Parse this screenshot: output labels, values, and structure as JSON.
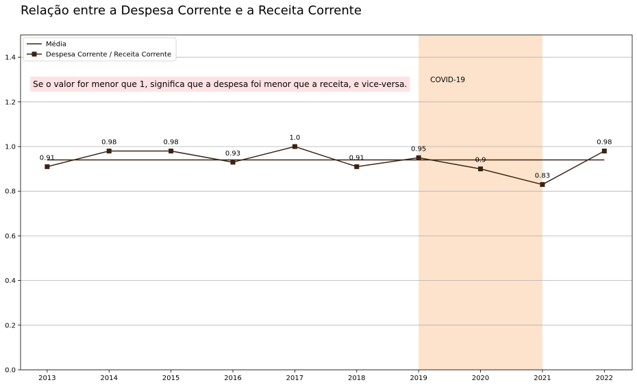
{
  "chart_data": {
    "type": "line",
    "title": "Relação entre a Despesa Corrente e a Receita Corrente",
    "xlabel": "",
    "ylabel": "",
    "x": [
      2013,
      2014,
      2015,
      2016,
      2017,
      2018,
      2019,
      2020,
      2021,
      2022
    ],
    "ylim": [
      0,
      1.5
    ],
    "yticks": [
      "0.0",
      "0.2",
      "0.4",
      "0.6",
      "0.8",
      "1.0",
      "1.2",
      "1.4"
    ],
    "grid": "horizontal",
    "legend_position": "top-left",
    "series": [
      {
        "name": "Média",
        "marker": "none",
        "color": "#3b2314",
        "values": [
          0.94,
          0.94,
          0.94,
          0.94,
          0.94,
          0.94,
          0.94,
          0.94,
          0.94,
          0.94
        ]
      },
      {
        "name": "Despesa Corrente / Receita Corrente",
        "marker": "square",
        "color": "#3b2314",
        "values": [
          0.91,
          0.98,
          0.98,
          0.93,
          1.0,
          0.91,
          0.95,
          0.9,
          0.83,
          0.98
        ],
        "labels": [
          "0.91",
          "0.98",
          "0.98",
          "0.93",
          "1.0",
          "0.91",
          "0.95",
          "0.9",
          "0.83",
          "0.98"
        ]
      }
    ],
    "highlight": {
      "x_start": 2019,
      "x_end": 2021,
      "label": "COVID-19",
      "color": "#fde3cc"
    },
    "note": {
      "text": "Se o valor for menor que 1, significa que a despesa foi menor que a receita, e vice-versa.",
      "background": "#fde2e4"
    }
  }
}
